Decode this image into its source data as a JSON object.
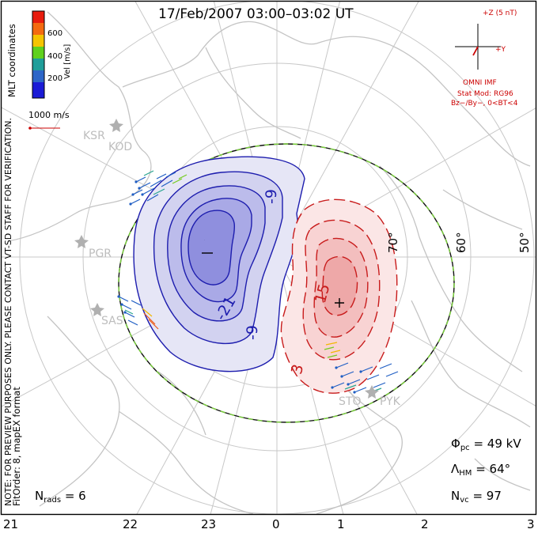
{
  "title": "17/Feb/2007 03:00–03:02 UT",
  "colorbar": {
    "label": "Vel [m/s]",
    "ticks": [
      "600",
      "400",
      "200"
    ],
    "colors": [
      "#e81c0e",
      "#f46a10",
      "#f5c400",
      "#5fd11d",
      "#1f9e9a",
      "#2d66c8",
      "#1b1bd6"
    ]
  },
  "left_notes": {
    "mlt": "MLT coordinates",
    "note1": "NOTE: FOR PREVIEW PURPOSES ONLY. PLEASE CONTACT VT-SD STAFF FOR VERIFICATION.",
    "note2": "FitOrder: 8, mapEX format"
  },
  "scale_vector": "1000 m/s",
  "imf": {
    "z_label": "+Z (5 nT)",
    "y_label": "+Y",
    "line1": "OMNI IMF",
    "line2": "Stat Mod: RG96",
    "line3": "Bz−/By−, 0<BT<4"
  },
  "latitude_labels": [
    "70°",
    "60°",
    "50°"
  ],
  "contour_labels": [
    "-9",
    "-21",
    "-9",
    "15",
    "3"
  ],
  "extrema_markers": [
    "−",
    "+"
  ],
  "radar_sites": [
    "KSR",
    "KOD",
    "PGR",
    "SAS",
    "STO",
    "PYK"
  ],
  "stats": {
    "phi_symbol": "Φ",
    "phi_sub": "pc",
    "phi_value": "= 49 kV",
    "lambda_symbol": "Λ",
    "lambda_sub": "HM",
    "lambda_value": "= 64°",
    "nvc_symbol": "N",
    "nvc_sub": "vc",
    "nvc_value": "= 97",
    "nrads_symbol": "N",
    "nrads_sub": "rads",
    "nrads_value": "= 6"
  },
  "mlt_axis": [
    "21",
    "22",
    "23",
    "0",
    "1",
    "2",
    "3"
  ]
}
